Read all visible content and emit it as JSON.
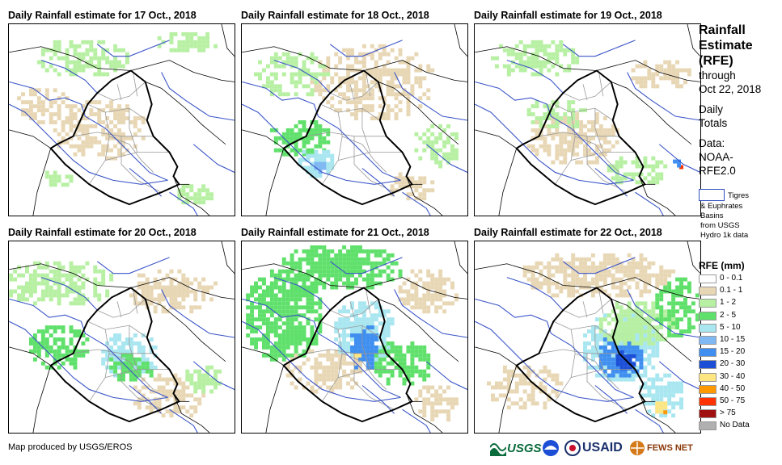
{
  "panels": [
    {
      "title": "Daily Rainfall estimate for 17 Oct., 2018"
    },
    {
      "title": "Daily Rainfall estimate for 18 Oct., 2018"
    },
    {
      "title": "Daily Rainfall estimate for 19 Oct., 2018"
    },
    {
      "title": "Daily Rainfall estimate for 20 Oct., 2018"
    },
    {
      "title": "Daily Rainfall estimate for 21 Oct., 2018"
    },
    {
      "title": "Daily Rainfall estimate for 22 Oct., 2018"
    }
  ],
  "sidebar": {
    "title_line1": "Rainfall",
    "title_line2": "Estimate",
    "title_line3": "(RFE)",
    "through": "through",
    "date": "Oct 22, 2018",
    "daily": "Daily",
    "totals": "Totals",
    "data": "Data:",
    "noaa": "NOAA-",
    "rfe": "RFE2.0",
    "basin_line1": "Tigres",
    "basin_line2": "& Euphrates",
    "basin_line3": "Basins",
    "basin_line4": "from USGS",
    "basin_line5": "Hydro 1k data"
  },
  "legend": {
    "title": "RFE (mm)",
    "items": [
      {
        "label": "0 - 0.1",
        "color": "#ffffff"
      },
      {
        "label": "0.1 - 1",
        "color": "#e8d7b5"
      },
      {
        "label": "1 - 2",
        "color": "#b7f0a3"
      },
      {
        "label": "2 - 5",
        "color": "#5fe06b"
      },
      {
        "label": "5 - 10",
        "color": "#a8e6f0"
      },
      {
        "label": "10 - 15",
        "color": "#7fb8f2"
      },
      {
        "label": "15 - 20",
        "color": "#3f8ef0"
      },
      {
        "label": "20 - 30",
        "color": "#1d4fd6"
      },
      {
        "label": "30 - 40",
        "color": "#ffe680"
      },
      {
        "label": "40 - 50",
        "color": "#ff9900"
      },
      {
        "label": "50 - 75",
        "color": "#ff3300"
      },
      {
        "label": "> 75",
        "color": "#a01010"
      },
      {
        "label": "No Data",
        "color": "#b0b0b0"
      }
    ]
  },
  "credit": "Map produced by USGS/EROS",
  "logos": {
    "usgs": "USGS",
    "usaid": "USAID",
    "fews": "FEWS NET"
  }
}
